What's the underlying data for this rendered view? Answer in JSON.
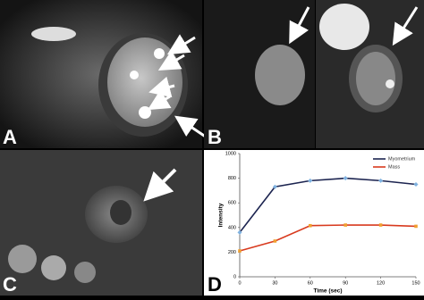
{
  "panels": {
    "a": "A",
    "b": "B",
    "c": "C",
    "d": "D"
  },
  "chart_data": {
    "type": "line",
    "xlabel": "Time (sec)",
    "ylabel": "Intensity",
    "x": [
      0,
      30,
      60,
      90,
      120,
      150
    ],
    "series": [
      {
        "name": "Myometrium",
        "color": "#1c2450",
        "marker_color": "#7fb2e0",
        "values": [
          360,
          730,
          780,
          800,
          780,
          750
        ]
      },
      {
        "name": "Mass",
        "color": "#d83a1e",
        "marker_color": "#f0a030",
        "values": [
          210,
          290,
          415,
          420,
          420,
          410
        ]
      }
    ],
    "xlim": [
      0,
      150
    ],
    "ylim": [
      0,
      1000
    ],
    "xticks": [
      0,
      30,
      60,
      90,
      120,
      150
    ],
    "yticks": [
      0,
      200,
      400,
      600,
      800,
      1000
    ],
    "grid": false,
    "legend": "upper right"
  }
}
